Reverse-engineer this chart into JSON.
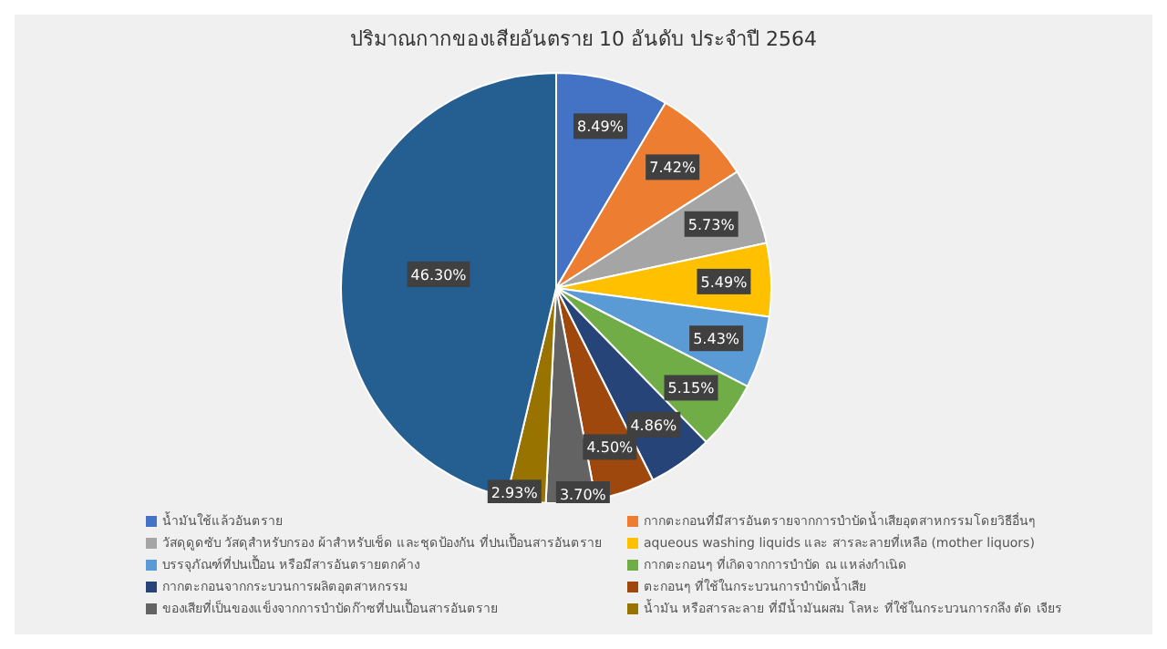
{
  "chart_data": {
    "type": "pie",
    "title": "ปริมาณกากของเสียอันตราย 10 อันดับ ประจำปี 2564",
    "categories": [
      "น้ำมันใช้แล้วอันตราย",
      "กากตะกอนที่มีสารอันตรายจากการบำบัดน้ำเสียอุตสาหกรรมโดยวิธีอื่นๆ",
      "วัสดุดูดซับ วัสดุสำหรับกรอง ผ้าสำหรับเช็ด และชุดป้องกัน ที่ปนเปื้อนสารอันตราย",
      "aqueous washing liquids และ สารละลายที่เหลือ (mother liquors)",
      "บรรจุภัณฑ์ที่ปนเปื้อน หรือมีสารอันตรายตกค้าง",
      "กากตะกอนๆ ที่เกิดจากการบำบัด ณ แหล่งกำเนิด",
      "กากตะกอนจากกระบวนการผลิตอุตสาหกรรม",
      "ตะกอนๆ ที่ใช้ในกระบวนการบำบัดน้ำเสีย",
      "ของเสียที่เป็นของแข็งจากการบำบัดก๊าซที่ปนเปื้อนสารอันตราย",
      "น้ำมัน หรือสารละลาย ที่มีน้ำมันผสม โลหะ ที่ใช้ในกระบวนการกลึง ตัด เจียร",
      null
    ],
    "values": [
      8.49,
      7.42,
      5.73,
      5.49,
      5.43,
      5.15,
      4.86,
      4.5,
      3.7,
      2.93,
      46.3
    ],
    "colors": [
      "#4472c4",
      "#ed7d31",
      "#a5a5a5",
      "#ffc000",
      "#5b9bd5",
      "#70ad47",
      "#264478",
      "#9e480e",
      "#636363",
      "#997300",
      "#255e91"
    ],
    "value_labels": [
      "8.49%",
      "7.42%",
      "5.73%",
      "5.49%",
      "5.43%",
      "5.15%",
      "4.86%",
      "4.50%",
      "3.70%",
      "2.93%",
      "46.30%"
    ],
    "legend": "bottom"
  }
}
